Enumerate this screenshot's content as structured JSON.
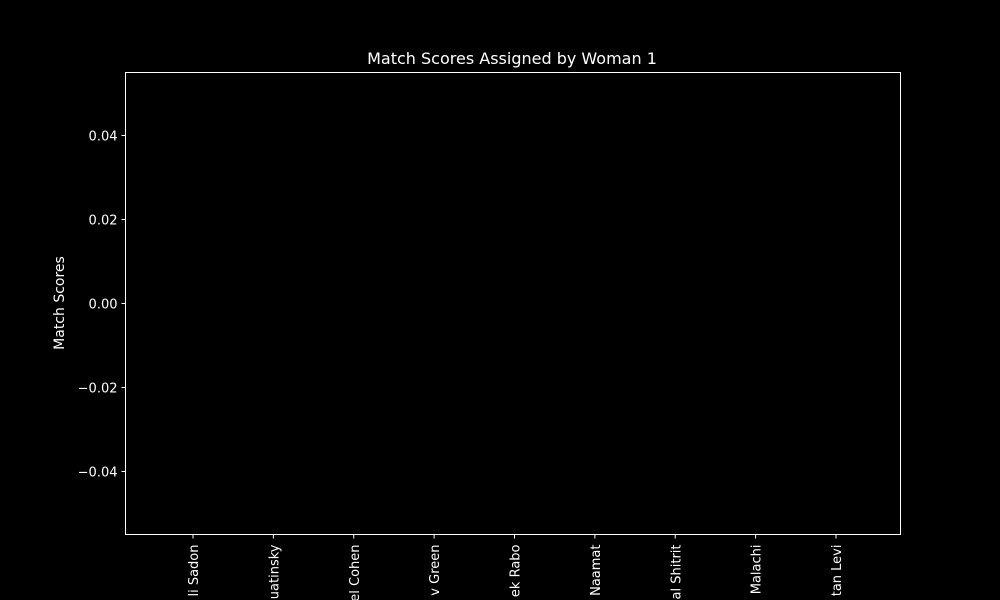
{
  "chart_data": {
    "type": "bar",
    "title": "Match Scores Assigned by Woman 1",
    "xlabel": "",
    "ylabel": "Match Scores",
    "categories": [
      "li Sadon",
      "uatinsky",
      "el Cohen",
      "v Green",
      "ek Rabo",
      "Naamat",
      "al Shitrit",
      "Malachi",
      "tan Levi"
    ],
    "values": [
      0,
      0,
      0,
      0,
      0,
      0,
      0,
      0,
      0
    ],
    "ylim": [
      -0.055,
      0.055
    ],
    "yticks": [
      "0.04",
      "0.02",
      "0.00",
      "−0.02",
      "−0.04"
    ],
    "ytick_values": [
      0.04,
      0.02,
      0.0,
      -0.02,
      -0.04
    ],
    "grid": false,
    "colors": {
      "background": "#000000",
      "foreground": "#ffffff",
      "bar": "#1f77b4"
    }
  }
}
